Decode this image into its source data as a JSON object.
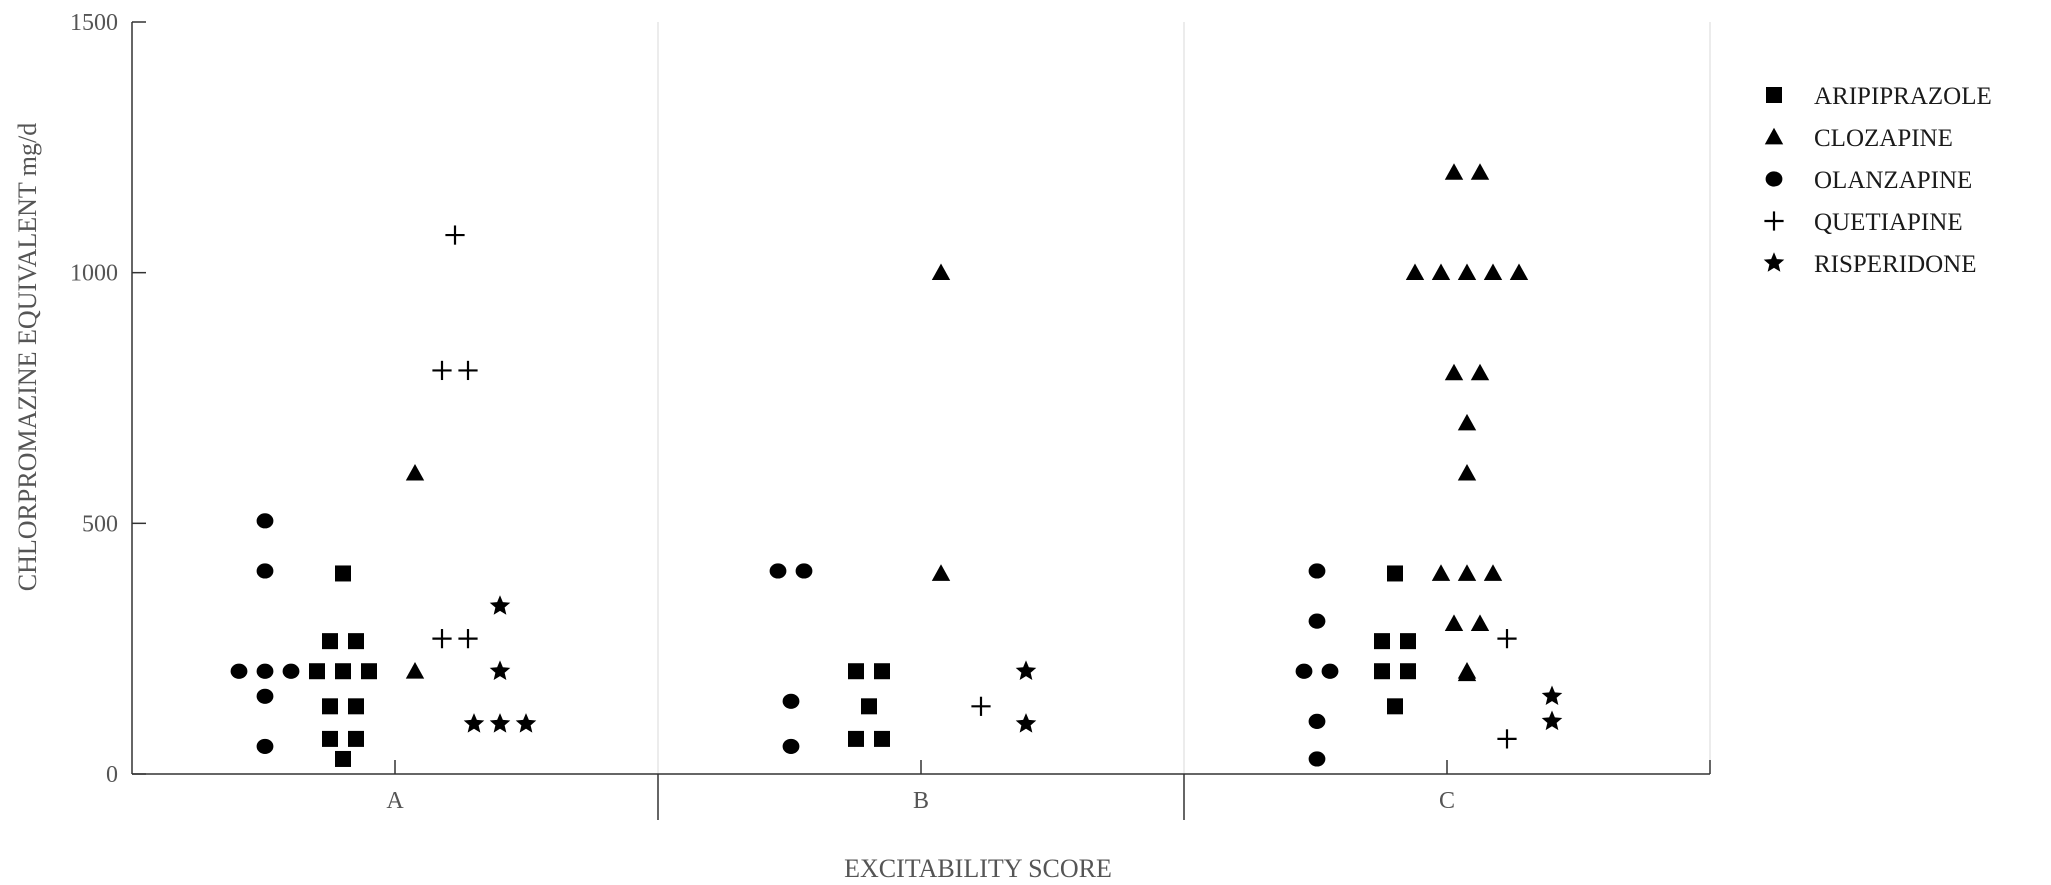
{
  "chart_data": {
    "type": "scatter",
    "title": "",
    "xlabel": "EXCITABILITY SCORE",
    "ylabel": "CHLORPROMAZINE EQUIVALENT  mg/d",
    "categories": [
      "A",
      "B",
      "C"
    ],
    "ylim": [
      0,
      1500
    ],
    "yticks": [
      0,
      500,
      1000,
      1500
    ],
    "grid": "vertical separators between categories",
    "legend": "right",
    "marker_color": "#000000",
    "series": [
      {
        "name": "ARIPIPRAZOLE",
        "marker": "square",
        "points": [
          {
            "cat": "A",
            "y": 400
          },
          {
            "cat": "A",
            "y": 265
          },
          {
            "cat": "A",
            "y": 265
          },
          {
            "cat": "A",
            "y": 205
          },
          {
            "cat": "A",
            "y": 205
          },
          {
            "cat": "A",
            "y": 205
          },
          {
            "cat": "A",
            "y": 135
          },
          {
            "cat": "A",
            "y": 135
          },
          {
            "cat": "A",
            "y": 70
          },
          {
            "cat": "A",
            "y": 70
          },
          {
            "cat": "A",
            "y": 30
          },
          {
            "cat": "B",
            "y": 205
          },
          {
            "cat": "B",
            "y": 205
          },
          {
            "cat": "B",
            "y": 135
          },
          {
            "cat": "B",
            "y": 70
          },
          {
            "cat": "B",
            "y": 70
          },
          {
            "cat": "C",
            "y": 400
          },
          {
            "cat": "C",
            "y": 265
          },
          {
            "cat": "C",
            "y": 265
          },
          {
            "cat": "C",
            "y": 205
          },
          {
            "cat": "C",
            "y": 205
          },
          {
            "cat": "C",
            "y": 135
          }
        ]
      },
      {
        "name": "CLOZAPINE",
        "marker": "triangle",
        "points": [
          {
            "cat": "A",
            "y": 600
          },
          {
            "cat": "A",
            "y": 205
          },
          {
            "cat": "B",
            "y": 1000
          },
          {
            "cat": "B",
            "y": 400
          },
          {
            "cat": "C",
            "y": 1200
          },
          {
            "cat": "C",
            "y": 1200
          },
          {
            "cat": "C",
            "y": 1000
          },
          {
            "cat": "C",
            "y": 1000
          },
          {
            "cat": "C",
            "y": 1000
          },
          {
            "cat": "C",
            "y": 1000
          },
          {
            "cat": "C",
            "y": 1000
          },
          {
            "cat": "C",
            "y": 800
          },
          {
            "cat": "C",
            "y": 800
          },
          {
            "cat": "C",
            "y": 700
          },
          {
            "cat": "C",
            "y": 600
          },
          {
            "cat": "C",
            "y": 400
          },
          {
            "cat": "C",
            "y": 400
          },
          {
            "cat": "C",
            "y": 400
          },
          {
            "cat": "C",
            "y": 300
          },
          {
            "cat": "C",
            "y": 300
          },
          {
            "cat": "C",
            "y": 205
          },
          {
            "cat": "C",
            "y": 200
          }
        ]
      },
      {
        "name": "OLANZAPINE",
        "marker": "circle",
        "points": [
          {
            "cat": "A",
            "y": 505
          },
          {
            "cat": "A",
            "y": 405
          },
          {
            "cat": "A",
            "y": 205
          },
          {
            "cat": "A",
            "y": 205
          },
          {
            "cat": "A",
            "y": 205
          },
          {
            "cat": "A",
            "y": 155
          },
          {
            "cat": "A",
            "y": 55
          },
          {
            "cat": "B",
            "y": 405
          },
          {
            "cat": "B",
            "y": 405
          },
          {
            "cat": "B",
            "y": 145
          },
          {
            "cat": "B",
            "y": 55
          },
          {
            "cat": "C",
            "y": 405
          },
          {
            "cat": "C",
            "y": 305
          },
          {
            "cat": "C",
            "y": 205
          },
          {
            "cat": "C",
            "y": 205
          },
          {
            "cat": "C",
            "y": 105
          },
          {
            "cat": "C",
            "y": 30
          }
        ]
      },
      {
        "name": "QUETIAPINE",
        "marker": "plus",
        "points": [
          {
            "cat": "A",
            "y": 1075
          },
          {
            "cat": "A",
            "y": 805
          },
          {
            "cat": "A",
            "y": 805
          },
          {
            "cat": "A",
            "y": 270
          },
          {
            "cat": "A",
            "y": 270
          },
          {
            "cat": "B",
            "y": 135
          },
          {
            "cat": "C",
            "y": 270
          },
          {
            "cat": "C",
            "y": 70
          }
        ]
      },
      {
        "name": "RISPERIDONE",
        "marker": "star",
        "points": [
          {
            "cat": "A",
            "y": 335
          },
          {
            "cat": "A",
            "y": 205
          },
          {
            "cat": "A",
            "y": 100
          },
          {
            "cat": "A",
            "y": 100
          },
          {
            "cat": "A",
            "y": 100
          },
          {
            "cat": "B",
            "y": 205
          },
          {
            "cat": "B",
            "y": 100
          },
          {
            "cat": "C",
            "y": 155
          },
          {
            "cat": "C",
            "y": 105
          }
        ]
      }
    ]
  }
}
